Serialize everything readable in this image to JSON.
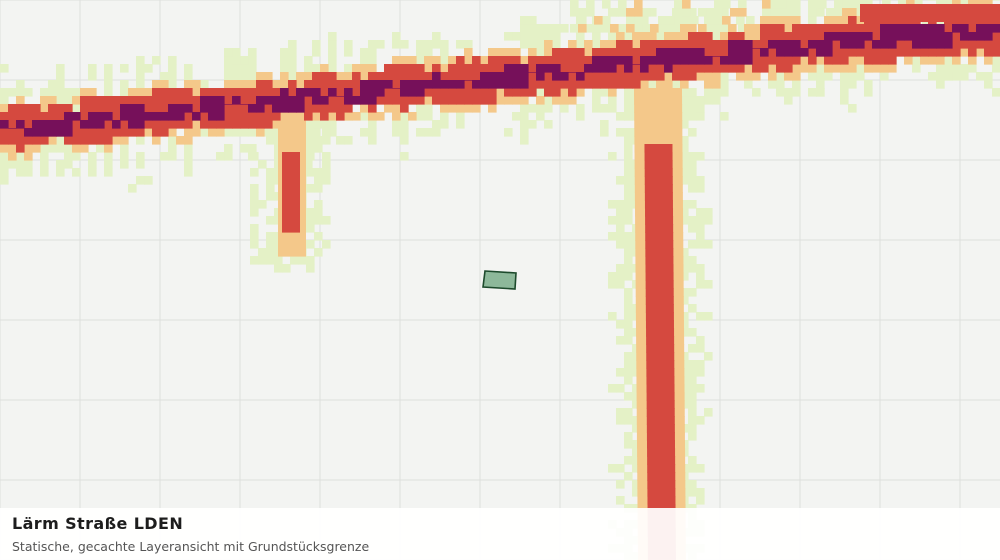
{
  "title": "Lärm Straße LDEN",
  "subtitle": "Statische, gecachte Layeransicht mit Grundstücksgrenze",
  "colors": {
    "background": "#f3f4f2",
    "grid": "#dedfdc",
    "noise_level_1": "#e4f1c6",
    "noise_level_2": "#f4c88a",
    "noise_level_3": "#d5493f",
    "noise_level_4": "#76105a",
    "parcel_fill": "#8db89a",
    "parcel_stroke": "#1d4a2c"
  }
}
